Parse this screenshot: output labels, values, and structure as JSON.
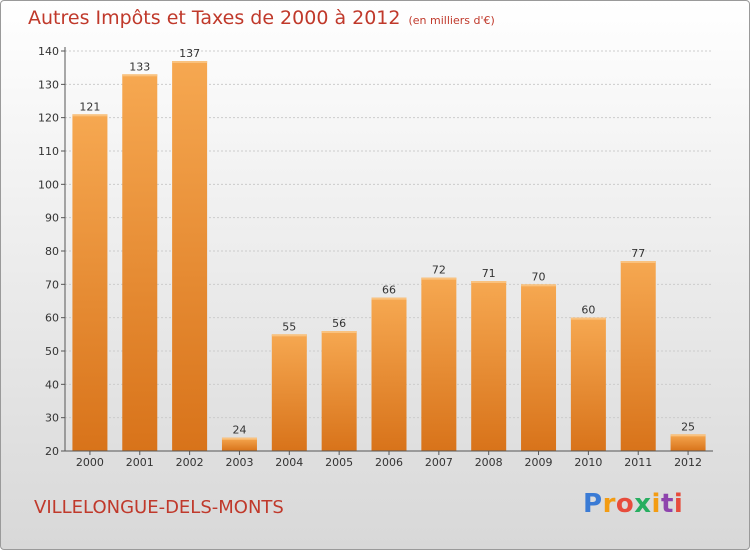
{
  "header": {
    "title": "Autres Impôts et Taxes de 2000 à 2012",
    "subtitle": "(en milliers d'€)"
  },
  "footer": {
    "town": "VILLELONGUE-DELS-MONTS",
    "brand": "Proxiti"
  },
  "colors": {
    "title_text": "#c0392b",
    "bar_top": "#f6a851",
    "bar_bottom": "#d8731a",
    "axis": "#555555",
    "grid": "#cccccc"
  },
  "chart_data": {
    "type": "bar",
    "title": "Autres Impôts et Taxes de 2000 à 2012",
    "subtitle": "(en milliers d'€)",
    "categories": [
      "2000",
      "2001",
      "2002",
      "2003",
      "2004",
      "2005",
      "2006",
      "2007",
      "2008",
      "2009",
      "2010",
      "2011",
      "2012"
    ],
    "values": [
      121,
      133,
      137,
      24,
      55,
      56,
      66,
      72,
      71,
      70,
      60,
      77,
      25
    ],
    "ylim": [
      20,
      140
    ],
    "yticks": [
      20,
      30,
      40,
      50,
      60,
      70,
      80,
      90,
      100,
      110,
      120,
      130,
      140
    ],
    "grid": true,
    "xlabel": "",
    "ylabel": ""
  }
}
